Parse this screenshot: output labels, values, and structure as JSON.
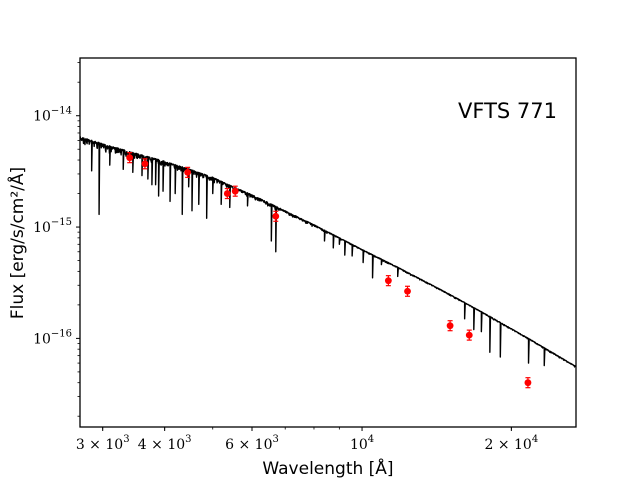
{
  "chart_data": {
    "type": "line",
    "annotation": "VFTS 771",
    "xlabel": "Wavelength [Å]",
    "ylabel": "Flux [erg/s/cm²/Å]",
    "xscale": "log",
    "yscale": "log",
    "xlim": [
      2700,
      27000
    ],
    "ylim": [
      1.6e-17,
      3.3e-14
    ],
    "x_ticks": [
      {
        "value": 3000,
        "mantissa": "3 × 10",
        "exp": "3"
      },
      {
        "value": 4000,
        "mantissa": "4 × 10",
        "exp": "3"
      },
      {
        "value": 6000,
        "mantissa": "6 × 10",
        "exp": "3"
      },
      {
        "value": 10000,
        "mantissa": "10",
        "exp": "4"
      },
      {
        "value": 20000,
        "mantissa": "2 × 10",
        "exp": "4"
      }
    ],
    "y_ticks": [
      {
        "value": 1e-16,
        "mantissa": "10",
        "exp": "−16"
      },
      {
        "value": 1e-15,
        "mantissa": "10",
        "exp": "−15"
      },
      {
        "value": 1e-14,
        "mantissa": "10",
        "exp": "−14"
      }
    ],
    "series": [
      {
        "kind": "model-spectrum",
        "color": "#000000",
        "continuum": [
          [
            2700,
            6.5e-15
          ],
          [
            3000,
            5.6e-15
          ],
          [
            3500,
            4.6e-15
          ],
          [
            4000,
            3.9e-15
          ],
          [
            4500,
            3.3e-15
          ],
          [
            5000,
            2.8e-15
          ],
          [
            5500,
            2.3e-15
          ],
          [
            6000,
            1.95e-15
          ],
          [
            7000,
            1.4e-15
          ],
          [
            8000,
            1.05e-15
          ],
          [
            10000,
            6.3e-16
          ],
          [
            12000,
            4.2e-16
          ],
          [
            15000,
            2.5e-16
          ],
          [
            18000,
            1.6e-16
          ],
          [
            22000,
            9.6e-17
          ],
          [
            27000,
            5.6e-17
          ]
        ],
        "absorption_lines": [
          [
            2850,
            3.2e-15
          ],
          [
            2950,
            1.3e-15
          ],
          [
            3100,
            3.6e-15
          ],
          [
            3300,
            3.3e-15
          ],
          [
            3450,
            3.1e-15
          ],
          [
            3600,
            2.9e-15
          ],
          [
            3700,
            2.7e-15
          ],
          [
            3770,
            2.4e-15
          ],
          [
            3835,
            2.4e-15
          ],
          [
            3889,
            1.9e-15
          ],
          [
            3970,
            2.1e-15
          ],
          [
            4101,
            1.7e-15
          ],
          [
            4200,
            2e-15
          ],
          [
            4340,
            1.3e-15
          ],
          [
            4471,
            2.3e-15
          ],
          [
            4541,
            1.4e-15
          ],
          [
            4686,
            1.6e-15
          ],
          [
            4861,
            1.2e-15
          ],
          [
            5000,
            2e-15
          ],
          [
            5200,
            1.6e-15
          ],
          [
            5411,
            1.5e-15
          ],
          [
            5876,
            1.55e-15
          ],
          [
            6563,
            7.5e-16
          ],
          [
            6700,
            6e-16
          ],
          [
            8400,
            7.5e-16
          ],
          [
            8750,
            6.5e-16
          ],
          [
            9000,
            7e-16
          ],
          [
            9230,
            5.6e-16
          ],
          [
            9550,
            5.5e-16
          ],
          [
            10050,
            4.8e-16
          ],
          [
            10500,
            3.5e-16
          ],
          [
            10940,
            4.6e-16
          ],
          [
            11800,
            3.6e-16
          ],
          [
            16100,
            1.5e-16
          ],
          [
            16800,
            1.2e-16
          ],
          [
            17400,
            1.15e-16
          ],
          [
            18100,
            7.5e-17
          ],
          [
            19000,
            6.8e-17
          ],
          [
            21660,
            6e-17
          ],
          [
            23300,
            5.7e-17
          ]
        ]
      },
      {
        "kind": "photometry",
        "color": "#ff0000",
        "points": [
          [
            3400,
            4.2e-15
          ],
          [
            3650,
            3.7e-15
          ],
          [
            4450,
            3.1e-15
          ],
          [
            5350,
            2e-15
          ],
          [
            5550,
            2.1e-15
          ],
          [
            6700,
            1.25e-15
          ],
          [
            11300,
            3.3e-16
          ],
          [
            12350,
            2.65e-16
          ],
          [
            15050,
            1.3e-16
          ],
          [
            16450,
            1.07e-16
          ],
          [
            21600,
            4e-17
          ]
        ]
      }
    ]
  }
}
